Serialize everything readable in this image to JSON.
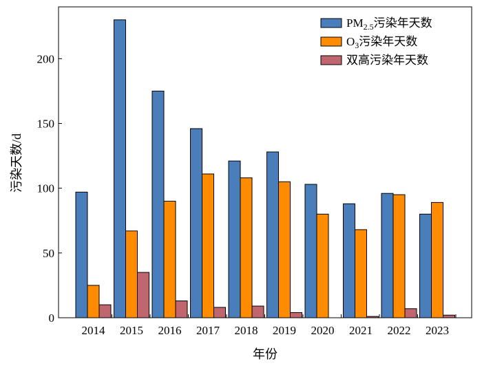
{
  "chart_data": {
    "type": "bar",
    "xlabel": "年份",
    "ylabel": "污染天数/d",
    "ylim": [
      0,
      240
    ],
    "yticks": [
      0,
      50,
      100,
      150,
      200
    ],
    "categories": [
      "2014",
      "2015",
      "2016",
      "2017",
      "2018",
      "2019",
      "2020",
      "2021",
      "2022",
      "2023"
    ],
    "legend_position": "top-right",
    "series": [
      {
        "name": "PM2.5污染年天数",
        "name_main": "PM",
        "name_sub": "2.5",
        "name_rest": "污染年天数",
        "color": "#4a7ebb",
        "values": [
          97,
          230,
          175,
          146,
          121,
          128,
          103,
          88,
          96,
          80
        ]
      },
      {
        "name": "O3污染年天数",
        "name_main": "O",
        "name_sub": "3",
        "name_rest": "污染年天数",
        "color": "#ff8c00",
        "values": [
          25,
          67,
          90,
          111,
          108,
          105,
          80,
          68,
          95,
          89
        ]
      },
      {
        "name": "双高污染年天数",
        "name_main": "双高污染年天数",
        "name_sub": "",
        "name_rest": "",
        "color": "#c0666e",
        "values": [
          10,
          35,
          13,
          8,
          9,
          4,
          0,
          1,
          7,
          2
        ]
      }
    ]
  }
}
